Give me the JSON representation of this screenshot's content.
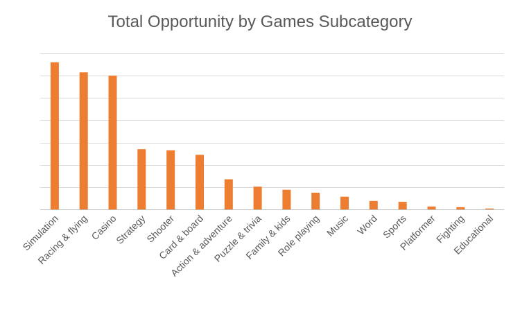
{
  "chart_data": {
    "type": "bar",
    "title": "Total Opportunity by Games Subcategory",
    "categories": [
      "Simulation",
      "Racing & flying",
      "Casino",
      "Strategy",
      "Shooter",
      "Card & board",
      "Action & adventure",
      "Puzzle & trivia",
      "Family & kids",
      "Role playing",
      "Music",
      "Word",
      "Sports",
      "Platformer",
      "Fighting",
      "Educational"
    ],
    "values": [
      6.6,
      6.15,
      6.0,
      2.7,
      2.65,
      2.45,
      1.35,
      1.02,
      0.88,
      0.75,
      0.57,
      0.38,
      0.34,
      0.13,
      0.1,
      0.04
    ],
    "xlabel": "",
    "ylabel": "",
    "ylim": [
      0,
      7
    ],
    "y_tick_labels_visible": false,
    "grid": true,
    "legend": "none",
    "bar_color": "#ED7D31",
    "grid_color": "#D9D9D9"
  }
}
